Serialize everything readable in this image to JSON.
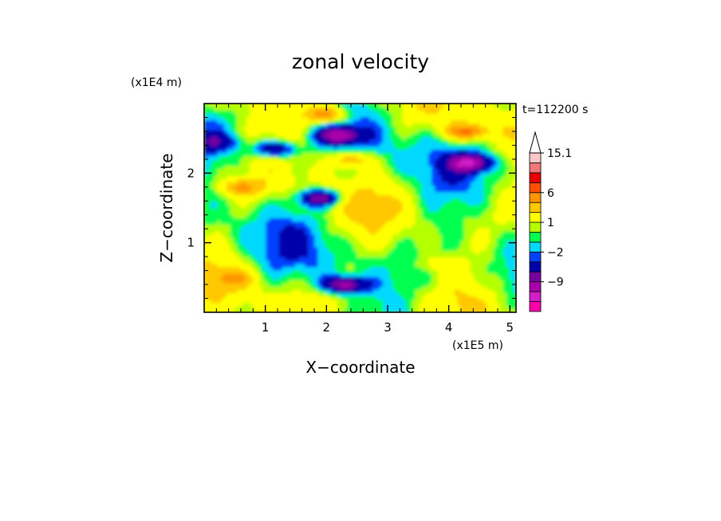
{
  "chart_data": {
    "type": "heatmap",
    "title": "zonal velocity",
    "xlabel": "X−coordinate",
    "ylabel": "Z−coordinate",
    "x_unit": "(x1E5 m)",
    "y_unit": "(x1E4 m)",
    "time_label": "t=112200 s",
    "xlim": [
      0,
      5.1
    ],
    "ylim": [
      0,
      3.0
    ],
    "x_ticks": [
      "1",
      "2",
      "3",
      "4",
      "5"
    ],
    "y_ticks": [
      "1",
      "2"
    ],
    "colorbar": {
      "levels": [
        -13,
        -11,
        -9,
        -7,
        -5,
        -2,
        -1,
        0,
        1,
        2,
        4,
        6,
        8,
        11,
        13,
        15.1
      ],
      "labeled": [
        "15.1",
        "6",
        "1",
        "−2",
        "−9"
      ],
      "colors": [
        "#ff00aa",
        "#d21ec8",
        "#aa00aa",
        "#7800a0",
        "#0000aa",
        "#0040ff",
        "#00d8ff",
        "#00ff50",
        "#b4ff00",
        "#ffff00",
        "#ffc800",
        "#ff9600",
        "#ff5000",
        "#e60000",
        "#f07878",
        "#ffc8c8"
      ]
    },
    "features": [
      {
        "x": 2.2,
        "z": 2.55,
        "value": -8
      },
      {
        "x": 1.15,
        "z": 2.35,
        "value": -7
      },
      {
        "x": 4.35,
        "z": 2.15,
        "value": -9
      },
      {
        "x": 1.9,
        "z": 1.65,
        "value": -8
      },
      {
        "x": 0.2,
        "z": 2.45,
        "value": -4
      },
      {
        "x": 4.3,
        "z": 2.6,
        "value": 7
      },
      {
        "x": 2.0,
        "z": 2.85,
        "value": 7
      },
      {
        "x": 2.4,
        "z": 2.2,
        "value": 5
      },
      {
        "x": 0.6,
        "z": 1.8,
        "value": 5
      },
      {
        "x": 3.8,
        "z": 0.7,
        "value": 2
      },
      {
        "x": 0.5,
        "z": 0.5,
        "value": 3
      },
      {
        "x": 2.3,
        "z": 0.4,
        "value": -9
      }
    ]
  }
}
